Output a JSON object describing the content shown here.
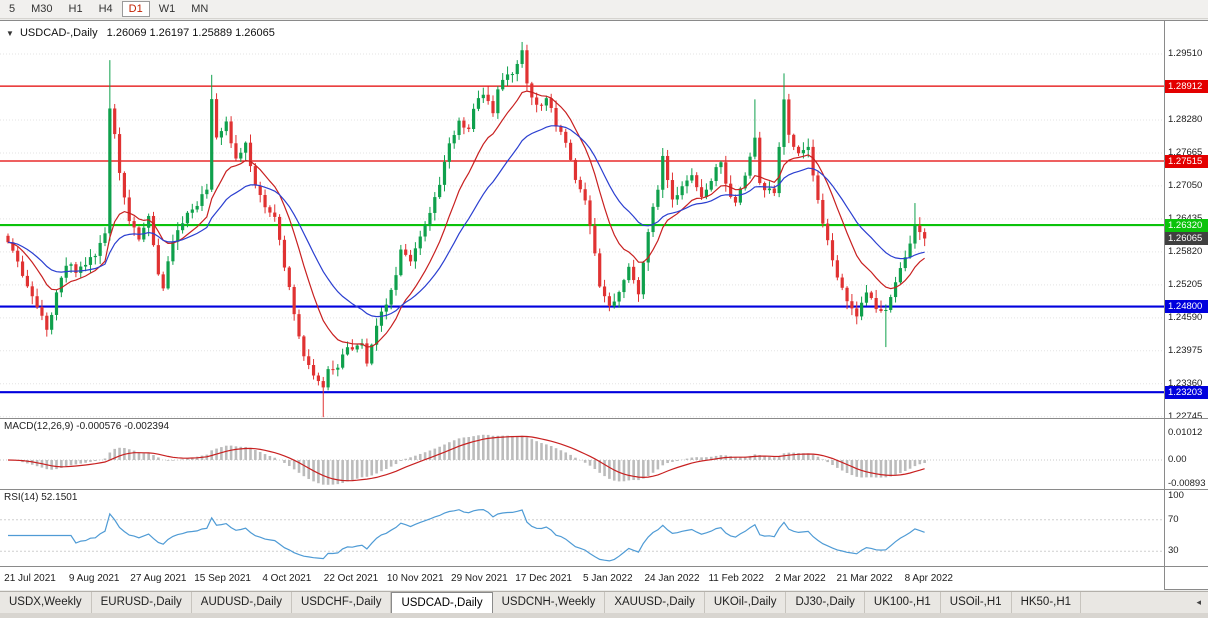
{
  "toolbar": {
    "timeframes": [
      {
        "label": "5",
        "active": false
      },
      {
        "label": "M30",
        "active": false
      },
      {
        "label": "H1",
        "active": false
      },
      {
        "label": "H4",
        "active": false
      },
      {
        "label": "D1",
        "active": true
      },
      {
        "label": "W1",
        "active": false
      },
      {
        "label": "MN",
        "active": false
      }
    ]
  },
  "chart_window": {
    "title_symbol": "USDCAD-,Daily",
    "title_ohlc": "1.26069 1.26197 1.25889 1.26065",
    "dropdown_glyph": "▼"
  },
  "macd": {
    "label": "MACD(12,26,9) -0.000576 -0.002394",
    "axis": [
      {
        "v": 0.01012,
        "label": "0.01012"
      },
      {
        "v": 0,
        "label": "0.00"
      },
      {
        "v": -0.00893,
        "label": "-0.00893"
      }
    ]
  },
  "rsi": {
    "label": "RSI(14) 52.1501",
    "axis": [
      {
        "v": 100,
        "label": "100"
      },
      {
        "v": 70,
        "label": "70"
      },
      {
        "v": 30,
        "label": "30"
      }
    ],
    "levels": [
      70,
      30
    ]
  },
  "dates": [
    "21 Jul 2021",
    "9 Aug 2021",
    "27 Aug 2021",
    "15 Sep 2021",
    "4 Oct 2021",
    "22 Oct 2021",
    "10 Nov 2021",
    "29 Nov 2021",
    "17 Dec 2021",
    "5 Jan 2022",
    "24 Jan 2022",
    "11 Feb 2022",
    "2 Mar 2022",
    "21 Mar 2022",
    "8 Apr 2022"
  ],
  "tabbar": {
    "scroll_glyph": "◂",
    "tabs": [
      {
        "label": "USDX,Weekly",
        "active": false
      },
      {
        "label": "EURUSD-,Daily",
        "active": false
      },
      {
        "label": "AUDUSD-,Daily",
        "active": false
      },
      {
        "label": "USDCHF-,Daily",
        "active": false
      },
      {
        "label": "USDCAD-,Daily",
        "active": true
      },
      {
        "label": "USDCNH-,Weekly",
        "active": false
      },
      {
        "label": "XAUUSD-,Daily",
        "active": false
      },
      {
        "label": "UKOil-,Daily",
        "active": false
      },
      {
        "label": "DJ30-,Daily",
        "active": false
      },
      {
        "label": "UK100-,H1",
        "active": false
      },
      {
        "label": "USOil-,H1",
        "active": false
      },
      {
        "label": "HK50-,H1",
        "active": false
      }
    ]
  },
  "chart_data": {
    "type": "candlestick",
    "symbol": "USDCAD-,Daily",
    "ohlc_display": {
      "open": 1.26069,
      "high": 1.26197,
      "low": 1.25889,
      "close": 1.26065
    },
    "current_price": 1.26065,
    "candle_count": 190,
    "price_range": {
      "max": 1.2994,
      "min": 1.2274
    },
    "axis_levels": [
      1.2951,
      1.2828,
      1.27665,
      1.2705,
      1.26435,
      1.2582,
      1.25205,
      1.2459,
      1.23975,
      1.2336,
      1.22745
    ],
    "hlines": [
      {
        "price": 1.28912,
        "color": "#e30000",
        "width": 1.3
      },
      {
        "price": 1.27515,
        "color": "#e30000",
        "width": 1.3
      },
      {
        "price": 1.2632,
        "color": "#0bc30b",
        "width": 2.2
      },
      {
        "price": 1.248,
        "color": "#0000dd",
        "width": 2.2
      },
      {
        "price": 1.23203,
        "color": "#0000dd",
        "width": 2.2
      }
    ],
    "indicators": {
      "ma": [
        {
          "type": "EMA",
          "period": 12,
          "color": "red"
        },
        {
          "type": "EMA",
          "period": 26,
          "color": "blue"
        }
      ],
      "macd_params": [
        12,
        26,
        9
      ],
      "macd_values": [
        -0.000576,
        -0.002394
      ],
      "rsi_period": 14,
      "rsi_value": 52.1501
    },
    "colors": {
      "up": "#0fa04c",
      "down": "#e03232",
      "ma_fast": "#c82020",
      "ma_slow": "#2b3fd0",
      "macd_hist": "#bcbcbc",
      "macd_signal": "#c82020",
      "rsi": "#4f9bd5",
      "current_tag": "#404040",
      "grid": "#e3e3e3"
    },
    "price_anchors": [
      [
        0,
        1.26
      ],
      [
        2,
        1.256
      ],
      [
        6,
        1.248
      ],
      [
        8,
        1.2435
      ],
      [
        10,
        1.25
      ],
      [
        12,
        1.256
      ],
      [
        14,
        1.2545
      ],
      [
        16,
        1.256
      ],
      [
        18,
        1.258
      ],
      [
        20,
        1.262
      ],
      [
        21,
        1.2845
      ],
      [
        22,
        1.28
      ],
      [
        23,
        1.273
      ],
      [
        25,
        1.264
      ],
      [
        27,
        1.261
      ],
      [
        29,
        1.265
      ],
      [
        31,
        1.254
      ],
      [
        32,
        1.252
      ],
      [
        34,
        1.26
      ],
      [
        37,
        1.265
      ],
      [
        39,
        1.267
      ],
      [
        41,
        1.27
      ],
      [
        42,
        1.287
      ],
      [
        43,
        1.279
      ],
      [
        45,
        1.282
      ],
      [
        47,
        1.275
      ],
      [
        49,
        1.278
      ],
      [
        51,
        1.27
      ],
      [
        53,
        1.267
      ],
      [
        55,
        1.265
      ],
      [
        57,
        1.255
      ],
      [
        59,
        1.247
      ],
      [
        61,
        1.239
      ],
      [
        63,
        1.235
      ],
      [
        65,
        1.233
      ],
      [
        66,
        1.236
      ],
      [
        68,
        1.237
      ],
      [
        70,
        1.24
      ],
      [
        73,
        1.241
      ],
      [
        74,
        1.238
      ],
      [
        76,
        1.245
      ],
      [
        78,
        1.248
      ],
      [
        80,
        1.254
      ],
      [
        81,
        1.259
      ],
      [
        83,
        1.256
      ],
      [
        85,
        1.261
      ],
      [
        87,
        1.265
      ],
      [
        89,
        1.271
      ],
      [
        91,
        1.278
      ],
      [
        93,
        1.283
      ],
      [
        95,
        1.281
      ],
      [
        96,
        1.285
      ],
      [
        98,
        1.288
      ],
      [
        100,
        1.284
      ],
      [
        101,
        1.289
      ],
      [
        103,
        1.291
      ],
      [
        105,
        1.293
      ],
      [
        106,
        1.2955
      ],
      [
        107,
        1.29
      ],
      [
        109,
        1.285
      ],
      [
        111,
        1.287
      ],
      [
        113,
        1.282
      ],
      [
        115,
        1.278
      ],
      [
        117,
        1.272
      ],
      [
        119,
        1.268
      ],
      [
        120,
        1.263
      ],
      [
        122,
        1.252
      ],
      [
        124,
        1.248
      ],
      [
        126,
        1.251
      ],
      [
        128,
        1.256
      ],
      [
        130,
        1.25
      ],
      [
        132,
        1.262
      ],
      [
        134,
        1.27
      ],
      [
        135,
        1.276
      ],
      [
        137,
        1.268
      ],
      [
        139,
        1.27
      ],
      [
        141,
        1.273
      ],
      [
        143,
        1.268
      ],
      [
        145,
        1.272
      ],
      [
        147,
        1.275
      ],
      [
        148,
        1.271
      ],
      [
        150,
        1.267
      ],
      [
        152,
        1.272
      ],
      [
        154,
        1.279
      ],
      [
        155,
        1.271
      ],
      [
        158,
        1.269
      ],
      [
        160,
        1.286
      ],
      [
        161,
        1.28
      ],
      [
        163,
        1.276
      ],
      [
        165,
        1.278
      ],
      [
        167,
        1.268
      ],
      [
        169,
        1.26
      ],
      [
        171,
        1.254
      ],
      [
        173,
        1.249
      ],
      [
        175,
        1.246
      ],
      [
        177,
        1.251
      ],
      [
        179,
        1.248
      ],
      [
        181,
        1.247
      ],
      [
        183,
        1.253
      ],
      [
        185,
        1.257
      ],
      [
        187,
        1.263
      ],
      [
        189,
        1.2607
      ]
    ],
    "wick_overrides": [
      [
        21,
        0.0085,
        0
      ],
      [
        42,
        0.003,
        0
      ],
      [
        65,
        0,
        0.004
      ],
      [
        106,
        0.0012,
        0
      ],
      [
        154,
        0.006,
        0
      ],
      [
        160,
        0.0035,
        0
      ],
      [
        181,
        0,
        0.0065
      ],
      [
        187,
        0.0032,
        0
      ]
    ]
  }
}
